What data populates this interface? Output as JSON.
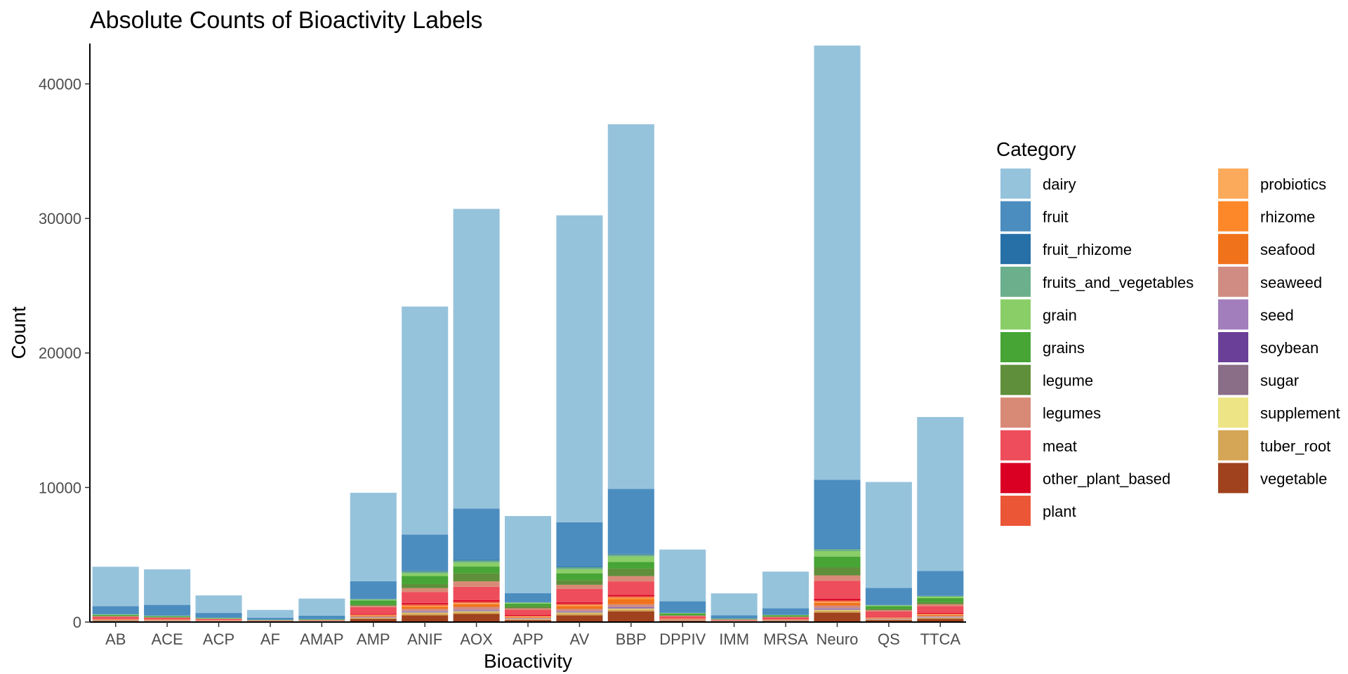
{
  "chart_data": {
    "type": "bar",
    "stacked": true,
    "title": "Absolute Counts of Bioactivity Labels",
    "xlabel": "Bioactivity",
    "ylabel": "Count",
    "ylim": [
      0,
      43000
    ],
    "yticks": [
      0,
      10000,
      20000,
      30000,
      40000
    ],
    "ytick_labels": [
      "0",
      "10000",
      "20000",
      "30000",
      "40000"
    ],
    "grid": false,
    "legend": {
      "title": "Category",
      "placement": "right",
      "columns": 2
    },
    "categories": [
      "AB",
      "ACE",
      "ACP",
      "AF",
      "AMAP",
      "AMP",
      "ANIF",
      "AOX",
      "APP",
      "AV",
      "BBP",
      "DPPIV",
      "IMM",
      "MRSA",
      "Neuro",
      "QS",
      "TTCA"
    ],
    "series": [
      {
        "name": "vegetable",
        "color": "#A0421E",
        "values": [
          80,
          60,
          40,
          30,
          40,
          250,
          500,
          600,
          150,
          500,
          800,
          100,
          40,
          80,
          700,
          150,
          250
        ]
      },
      {
        "name": "tuber_root",
        "color": "#D5A655",
        "values": [
          20,
          20,
          10,
          10,
          10,
          50,
          150,
          150,
          50,
          150,
          150,
          20,
          10,
          20,
          150,
          30,
          60
        ]
      },
      {
        "name": "supplement",
        "color": "#EDE485",
        "values": [
          10,
          10,
          10,
          5,
          5,
          20,
          50,
          50,
          20,
          50,
          50,
          10,
          5,
          10,
          50,
          10,
          20
        ]
      },
      {
        "name": "sugar",
        "color": "#8A6D87",
        "values": [
          10,
          10,
          5,
          5,
          5,
          20,
          50,
          50,
          20,
          50,
          50,
          10,
          5,
          10,
          50,
          10,
          20
        ]
      },
      {
        "name": "soybean",
        "color": "#6A3F98",
        "values": [
          5,
          5,
          5,
          3,
          3,
          10,
          20,
          20,
          10,
          20,
          20,
          5,
          3,
          5,
          20,
          5,
          10
        ]
      },
      {
        "name": "seed",
        "color": "#A37EBC",
        "values": [
          10,
          10,
          5,
          5,
          5,
          20,
          50,
          50,
          20,
          50,
          50,
          10,
          5,
          10,
          50,
          10,
          20
        ]
      },
      {
        "name": "seaweed",
        "color": "#D08C82",
        "values": [
          20,
          20,
          10,
          10,
          10,
          50,
          150,
          200,
          50,
          150,
          200,
          30,
          10,
          20,
          200,
          50,
          80
        ]
      },
      {
        "name": "seafood",
        "color": "#F0731C",
        "values": [
          30,
          30,
          20,
          10,
          10,
          50,
          150,
          200,
          60,
          200,
          350,
          30,
          10,
          20,
          200,
          40,
          80
        ]
      },
      {
        "name": "rhizome",
        "color": "#FC882A",
        "values": [
          10,
          10,
          10,
          5,
          5,
          20,
          50,
          50,
          20,
          50,
          100,
          10,
          5,
          10,
          50,
          10,
          20
        ]
      },
      {
        "name": "probiotics",
        "color": "#FBAA5B",
        "values": [
          10,
          10,
          10,
          5,
          5,
          20,
          50,
          50,
          20,
          50,
          50,
          10,
          5,
          10,
          50,
          10,
          20
        ]
      },
      {
        "name": "plant",
        "color": "#EB5637",
        "values": [
          20,
          20,
          10,
          5,
          5,
          50,
          100,
          100,
          50,
          100,
          100,
          20,
          10,
          20,
          100,
          30,
          50
        ]
      },
      {
        "name": "other_plant_based",
        "color": "#DA0024",
        "values": [
          20,
          20,
          10,
          5,
          5,
          50,
          100,
          100,
          50,
          100,
          100,
          20,
          10,
          20,
          100,
          30,
          50
        ]
      },
      {
        "name": "meat",
        "color": "#EE4D5B",
        "values": [
          150,
          100,
          80,
          20,
          30,
          500,
          800,
          1000,
          400,
          1000,
          1000,
          150,
          40,
          120,
          1350,
          400,
          500
        ]
      },
      {
        "name": "legumes",
        "color": "#D98A77",
        "values": [
          30,
          20,
          20,
          10,
          10,
          100,
          300,
          400,
          100,
          300,
          400,
          50,
          20,
          30,
          400,
          100,
          150
        ]
      },
      {
        "name": "legume",
        "color": "#5F8F3A",
        "values": [
          30,
          20,
          10,
          10,
          10,
          100,
          300,
          600,
          150,
          350,
          550,
          50,
          20,
          30,
          600,
          100,
          150
        ]
      },
      {
        "name": "grains",
        "color": "#46A535",
        "values": [
          80,
          60,
          40,
          20,
          30,
          300,
          600,
          500,
          200,
          500,
          500,
          100,
          30,
          80,
          800,
          200,
          300
        ]
      },
      {
        "name": "grain",
        "color": "#8ACE67",
        "values": [
          20,
          20,
          10,
          5,
          10,
          50,
          200,
          300,
          50,
          300,
          400,
          30,
          10,
          20,
          400,
          50,
          100
        ]
      },
      {
        "name": "fruits_and_vegetables",
        "color": "#6BAF8C",
        "values": [
          20,
          20,
          10,
          5,
          10,
          50,
          150,
          150,
          50,
          150,
          150,
          20,
          10,
          20,
          150,
          30,
          60
        ]
      },
      {
        "name": "fruit_rhizome",
        "color": "#2670A7",
        "values": [
          10,
          10,
          10,
          5,
          5,
          30,
          50,
          50,
          20,
          50,
          50,
          10,
          5,
          10,
          50,
          10,
          30
        ]
      },
      {
        "name": "fruit",
        "color": "#4B8DBF",
        "values": [
          600,
          800,
          350,
          150,
          260,
          1290,
          2680,
          3820,
          650,
          3300,
          4820,
          860,
          245,
          480,
          5110,
          1265,
          1830
        ]
      },
      {
        "name": "dairy",
        "color": "#96C3DC",
        "values": [
          2925,
          2645,
          1305,
          577,
          1272,
          6580,
          16950,
          22270,
          5740,
          22810,
          27110,
          3845,
          1635,
          2725,
          32270,
          7870,
          11440
        ]
      }
    ]
  }
}
